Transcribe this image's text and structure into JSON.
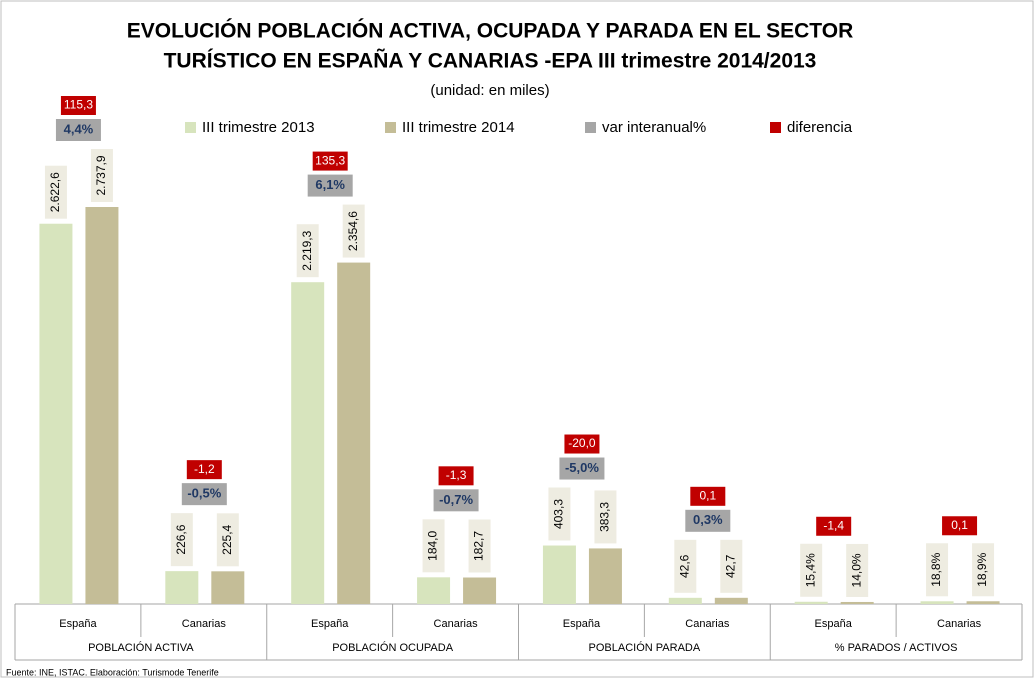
{
  "chart_data": {
    "type": "bar",
    "title": [
      "EVOLUCIÓN POBLACIÓN ACTIVA, OCUPADA Y PARADA EN EL SECTOR",
      "TURÍSTICO EN ESPAÑA Y CANARIAS -EPA  III  trimestre 2014/2013"
    ],
    "subtitle": "(unidad: en miles)",
    "source": "Fuente: INE, ISTAC. Elaboración: Turismode Tenerife",
    "categories": [
      "España",
      "Canarias",
      "España",
      "Canarias",
      "España",
      "Canarias",
      "España",
      "Canarias"
    ],
    "groups": [
      "POBLACIÓN ACTIVA",
      "POBLACIÓN OCUPADA",
      "POBLACIÓN PARADA",
      "% PARADOS / ACTIVOS"
    ],
    "series": [
      {
        "name": "III trimestre 2013",
        "color": "#d7e4bd",
        "values": [
          2622.6,
          226.6,
          2219.3,
          184.0,
          403.3,
          42.6,
          15.4,
          18.8
        ],
        "value_labels": [
          "2.622,6",
          "226,6",
          "2.219,3",
          "184,0",
          "403,3",
          "42,6",
          "15,4%",
          "18,8%"
        ]
      },
      {
        "name": "III trimestre 2014",
        "color": "#c4bd97",
        "values": [
          2737.9,
          225.4,
          2354.6,
          182.7,
          383.3,
          42.7,
          14.0,
          18.9
        ],
        "value_labels": [
          "2.737,9",
          "225,4",
          "2.354,6",
          "182,7",
          "383,3",
          "42,7",
          "14,0%",
          "18,9%"
        ]
      },
      {
        "name": "var interanual%",
        "color": "#a6a6a6",
        "values": [
          4.4,
          -0.5,
          6.1,
          -0.7,
          -5.0,
          0.3,
          null,
          null
        ],
        "value_labels": [
          "4,4%",
          "-0,5%",
          "6,1%",
          "-0,7%",
          "-5,0%",
          "0,3%",
          null,
          null
        ]
      },
      {
        "name": "diferencia",
        "color": "#c00000",
        "values": [
          115.3,
          -1.2,
          135.3,
          -1.3,
          -20.0,
          0.1,
          -1.4,
          0.1
        ],
        "value_labels": [
          "115,3",
          "-1,2",
          "135,3",
          "-1,3",
          "-20,0",
          "0,1",
          "-1,4",
          "0,1"
        ]
      }
    ],
    "legend": "top",
    "grid": false
  }
}
